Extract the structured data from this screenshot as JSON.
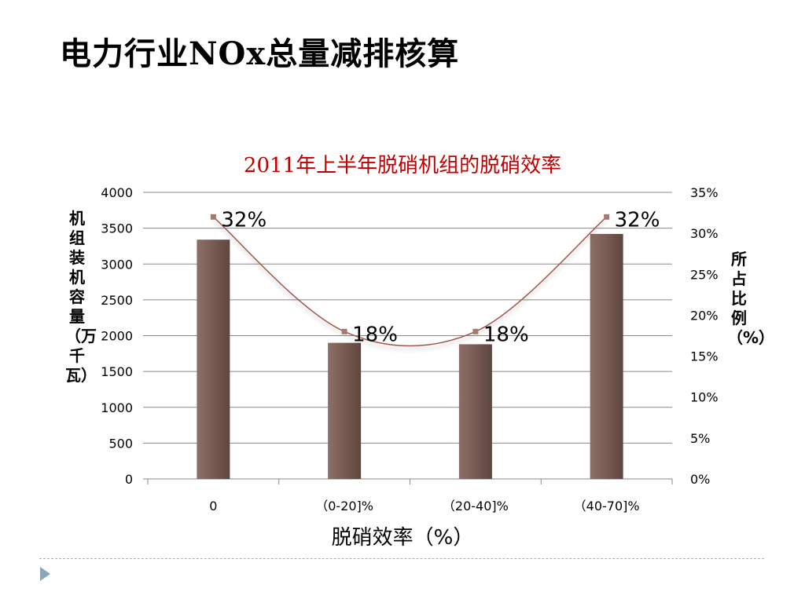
{
  "slide": {
    "title": "电力行业NOx总量减排核算"
  },
  "chart_data": {
    "type": "bar",
    "title": "2011年上半年脱硝机组的脱硝效率",
    "xlabel": "脱硝效率（%）",
    "ylabel": "机组装机容量（万千瓦）",
    "y2label": "所占比例（%）",
    "categories": [
      "0",
      "（0-20]%",
      "（20-40]%",
      "（40-70]%"
    ],
    "ylim": [
      0,
      4000
    ],
    "yticks": [
      "0",
      "500",
      "1000",
      "1500",
      "2000",
      "2500",
      "3000",
      "3500",
      "4000"
    ],
    "y2lim": [
      0,
      35
    ],
    "y2ticks": [
      "0%",
      "5%",
      "10%",
      "15%",
      "20%",
      "25%",
      "30%",
      "35%"
    ],
    "grid": true,
    "series": [
      {
        "type": "bar",
        "axis": "left",
        "values": [
          3340,
          1900,
          1880,
          3420
        ],
        "color": "#7e6057"
      },
      {
        "type": "line",
        "axis": "right",
        "smooth": true,
        "values": [
          32,
          18,
          18,
          32
        ],
        "labels": [
          "32%",
          "18%",
          "18%",
          "32%"
        ],
        "color": "#a0564d"
      }
    ]
  }
}
